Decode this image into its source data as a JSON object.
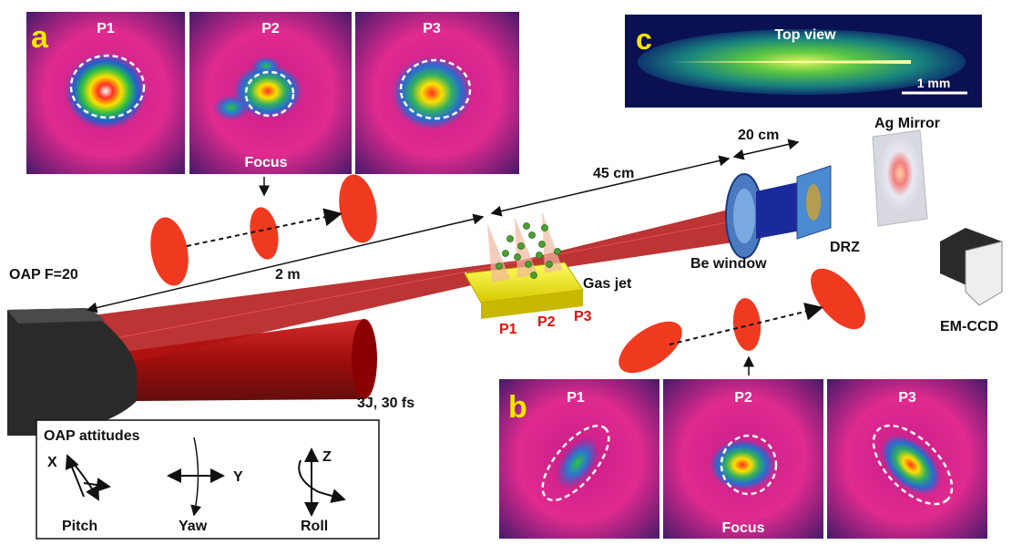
{
  "panels": {
    "a": {
      "letter": "a",
      "labels": [
        "P1",
        "P2",
        "P3"
      ],
      "focus_label": "Focus"
    },
    "b": {
      "letter": "b",
      "labels": [
        "P1",
        "P2",
        "P3"
      ],
      "focus_label": "Focus"
    },
    "c": {
      "letter": "c",
      "title": "Top view",
      "scale_label": "1 mm"
    }
  },
  "setup": {
    "oap_label": "OAP F=20",
    "dist_2m": "2 m",
    "dist_45cm": "45 cm",
    "dist_20cm": "20 cm",
    "gas_jet": "Gas jet",
    "positions": [
      "P1",
      "P2",
      "P3"
    ],
    "be_window": "Be window",
    "drz": "DRZ",
    "ag_mirror": "Ag Mirror",
    "em_ccd": "EM-CCD",
    "laser": "3J, 30 fs"
  },
  "attitudes": {
    "title": "OAP attitudes",
    "pitch": "Pitch",
    "yaw": "Yaw",
    "roll": "Roll",
    "x": "X",
    "y": "Y",
    "z": "Z"
  },
  "colors": {
    "panel_letter": "#f2e600",
    "position_label": "#e01010",
    "beam": "#a00000",
    "spot_oval": "#f03a20"
  }
}
